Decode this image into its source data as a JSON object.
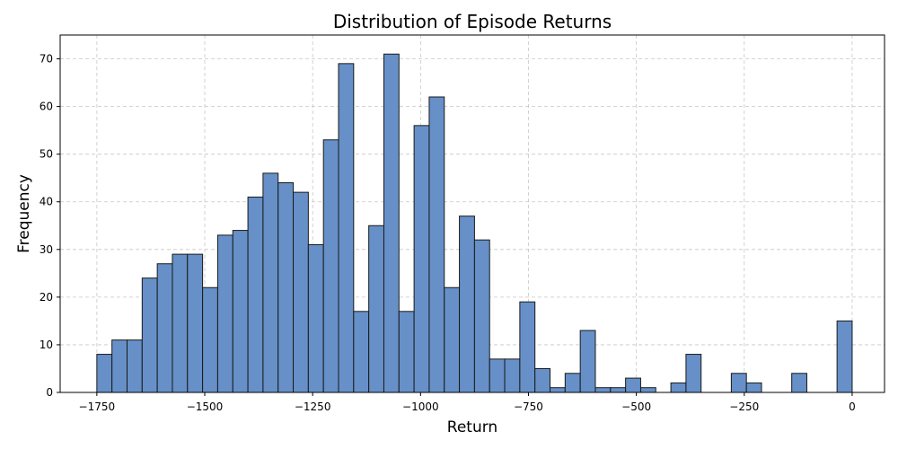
{
  "chart_data": {
    "type": "bar",
    "title": "Distribution of Episode Returns",
    "xlabel": "Return",
    "ylabel": "Frequency",
    "xlim": [
      -1835,
      75
    ],
    "ylim": [
      0,
      75
    ],
    "grid": true,
    "bar_color": "#6690c7",
    "bin_edges": [
      -1750,
      -1715,
      -1680,
      -1645,
      -1610,
      -1575,
      -1540,
      -1505,
      -1470,
      -1435,
      -1400,
      -1365,
      -1330,
      -1295,
      -1260,
      -1225,
      -1190,
      -1155,
      -1120,
      -1085,
      -1050,
      -1015,
      -980,
      -945,
      -910,
      -875,
      -840,
      -805,
      -770,
      -735,
      -700,
      -665,
      -630,
      -595,
      -560,
      -525,
      -490,
      -455,
      -420,
      -385,
      -350,
      -315,
      -280,
      -245,
      -210,
      -175,
      -140,
      -105,
      -70,
      -35,
      0
    ],
    "values": [
      8,
      11,
      11,
      24,
      27,
      29,
      29,
      22,
      33,
      34,
      41,
      46,
      44,
      42,
      31,
      53,
      69,
      17,
      35,
      71,
      17,
      56,
      62,
      22,
      37,
      32,
      7,
      7,
      19,
      5,
      1,
      4,
      13,
      1,
      1,
      3,
      1,
      0,
      2,
      8,
      0,
      0,
      4,
      2,
      0,
      0,
      4,
      0,
      0,
      15
    ],
    "x_ticks": [
      -1750,
      -1500,
      -1250,
      -1000,
      -750,
      -500,
      -250,
      0
    ],
    "x_tick_labels": [
      "−1750",
      "−1500",
      "−1250",
      "−1000",
      "−750",
      "−500",
      "−250",
      "0"
    ],
    "y_ticks": [
      0,
      10,
      20,
      30,
      40,
      50,
      60,
      70
    ],
    "y_tick_labels": [
      "0",
      "10",
      "20",
      "30",
      "40",
      "50",
      "60",
      "70"
    ]
  }
}
